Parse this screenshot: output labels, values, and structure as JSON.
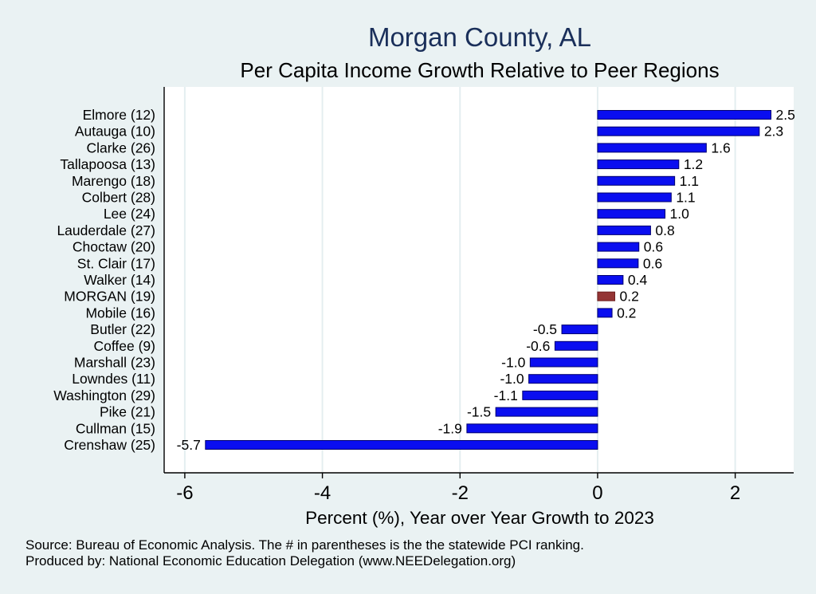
{
  "chart_data": {
    "type": "bar",
    "orientation": "horizontal",
    "title": "Morgan County, AL",
    "subtitle": "Per Capita Income Growth Relative to Peer Regions",
    "xlabel": "Percent (%), Year over Year Growth to 2023",
    "ylabel": "",
    "xlim": [
      -6.3,
      2.85
    ],
    "xticks": [
      -6,
      -4,
      -2,
      0,
      2
    ],
    "grid": true,
    "categories": [
      "Elmore (12)",
      "Autauga (10)",
      "Clarke (26)",
      "Tallapoosa (13)",
      "Marengo (18)",
      "Colbert (28)",
      "Lee (24)",
      "Lauderdale (27)",
      "Choctaw (20)",
      "St. Clair (17)",
      "Walker (14)",
      "MORGAN (19)",
      "Mobile (16)",
      "Butler (22)",
      "Coffee  (9)",
      "Marshall (23)",
      "Lowndes (11)",
      "Washington (29)",
      "Pike (21)",
      "Cullman (15)",
      "Crenshaw (25)"
    ],
    "values": [
      2.52,
      2.35,
      1.58,
      1.18,
      1.12,
      1.07,
      0.98,
      0.77,
      0.6,
      0.59,
      0.37,
      0.25,
      0.21,
      -0.52,
      -0.62,
      -0.98,
      -1.0,
      -1.09,
      -1.48,
      -1.9,
      -5.7
    ],
    "value_labels": [
      "2.5",
      "2.3",
      "1.6",
      "1.2",
      "1.1",
      "1.1",
      "1.0",
      "0.8",
      "0.6",
      "0.6",
      "0.4",
      "0.2",
      "0.2",
      "-0.5",
      "-0.6",
      "-1.0",
      "-1.0",
      "-1.1",
      "-1.5",
      "-1.9",
      "-5.7"
    ],
    "highlight_index": 11,
    "colors": {
      "bar": "#0a0ef0",
      "bar_edge": "#00006e",
      "highlight": "#943434",
      "highlight_edge": "#6e2020",
      "grid": "#e4eef0",
      "plot_bg": "#ffffff",
      "page_bg": "#eaf2f3",
      "title": "#1a2f5a"
    }
  },
  "notes": {
    "source": "Source: Bureau of Economic Analysis. The # in parentheses is the the statewide PCI ranking.",
    "produced_by": "Produced by: National Economic Education Delegation (www.NEEDelegation.org)"
  }
}
